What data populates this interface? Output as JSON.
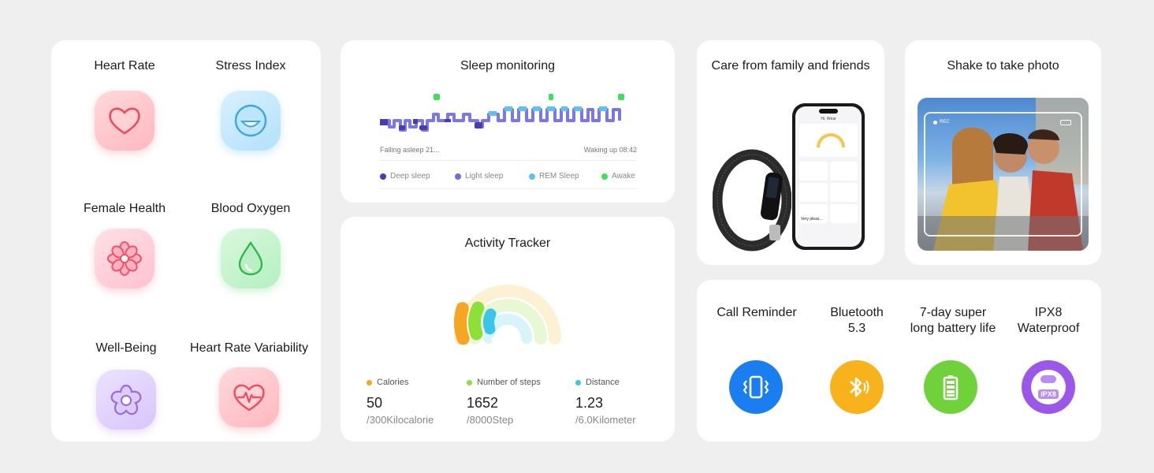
{
  "health": {
    "items": [
      {
        "label": "Heart Rate",
        "icon": "heart-icon",
        "color": "#f25c6a"
      },
      {
        "label": "Stress Index",
        "icon": "smile-face-icon",
        "color": "#4fb2ea"
      },
      {
        "label": "Female Health",
        "icon": "flower-icon",
        "color": "#f0607a"
      },
      {
        "label": "Blood Oxygen",
        "icon": "water-drop-icon",
        "color": "#4ccc6a"
      },
      {
        "label": "Well-Being",
        "icon": "blossom-icon",
        "color": "#a47be6"
      },
      {
        "label": "Heart Rate Variability",
        "icon": "heart-pulse-icon",
        "color": "#f0506a"
      }
    ]
  },
  "sleep": {
    "title": "Sleep monitoring",
    "start_label": "Falling asleep 21...",
    "end_label": "Waking up 08:42",
    "legend": [
      {
        "label": "Deep sleep",
        "color": "#4a3bb5"
      },
      {
        "label": "Light sleep",
        "color": "#6b6fe0"
      },
      {
        "label": "REM Sleep",
        "color": "#5fc1f2"
      },
      {
        "label": "Awake",
        "color": "#3ee05a"
      }
    ]
  },
  "activity": {
    "title": "Activity Tracker",
    "stats": [
      {
        "label": "Calories",
        "value": "50",
        "unit": "/300Kilocalorie",
        "color": "#f5a623",
        "fraction": 0.17
      },
      {
        "label": "Number of steps",
        "value": "1652",
        "unit": "/8000Step",
        "color": "#8de03a",
        "fraction": 0.21
      },
      {
        "label": "Distance",
        "value": "1.23",
        "unit": "/6.0Kilometer",
        "color": "#39c6e8",
        "fraction": 0.21
      }
    ]
  },
  "family": {
    "title": "Care from family and friends",
    "phone_header": "Hi, Wear",
    "phone_status_text": "Very pleas..."
  },
  "photo": {
    "title": "Shake to take photo",
    "rec_label": "REC"
  },
  "specs": {
    "items": [
      {
        "line1": "Call Reminder",
        "line2": "",
        "icon": "vibrating-phone-icon",
        "color": "#1a7ef0"
      },
      {
        "line1": "Bluetooth",
        "line2": "5.3",
        "icon": "bluetooth-icon",
        "color": "#f7b21c"
      },
      {
        "line1": "7-day super",
        "line2": "long battery life",
        "icon": "battery-icon",
        "color": "#6fd23a"
      },
      {
        "line1": "IPX8",
        "line2": "Waterproof",
        "icon": "waterproof-icon",
        "color": "#9a57e8",
        "badge": "IPX8"
      }
    ]
  }
}
